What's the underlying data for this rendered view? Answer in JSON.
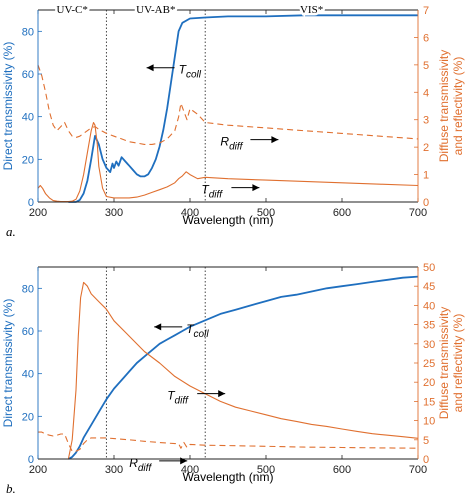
{
  "chart_data": [
    {
      "panel_label": "a.",
      "type": "line",
      "xlabel": "Wavelength (nm)",
      "ylabel_left": "Direct transmissivity (%)",
      "ylabel_right": [
        "Diffuse transmissivity",
        "and reflectivity (%)"
      ],
      "xlim": [
        200,
        700
      ],
      "xticks": [
        200,
        300,
        400,
        500,
        600,
        700
      ],
      "ylim_left": [
        0,
        90
      ],
      "yticks_left": [
        0,
        20,
        40,
        60,
        80
      ],
      "ylim_right": [
        0,
        7
      ],
      "yticks_right": [
        0,
        1,
        2,
        3,
        4,
        5,
        6,
        7
      ],
      "region_lines_x": [
        290,
        420
      ],
      "regions": [
        {
          "label": "UV-C*",
          "x_start": 200,
          "x_end": 290
        },
        {
          "label": "UV-AB*",
          "x_start": 290,
          "x_end": 420
        },
        {
          "label": "VIS*",
          "x_start": 420,
          "x_end": 700
        }
      ],
      "series": [
        {
          "name": "T_coll",
          "axis": "left",
          "color": "#1f6fbf",
          "style": "solid",
          "x": [
            240,
            250,
            255,
            260,
            265,
            270,
            275,
            280,
            285,
            290,
            295,
            298,
            300,
            303,
            306,
            310,
            315,
            320,
            325,
            330,
            335,
            340,
            345,
            350,
            355,
            360,
            365,
            370,
            375,
            380,
            385,
            390,
            400,
            420,
            450,
            500,
            550,
            600,
            650,
            700
          ],
          "y": [
            0,
            0,
            1,
            4,
            10,
            20,
            31,
            27,
            20,
            16,
            14,
            18,
            16,
            19,
            17,
            21,
            19,
            17,
            15,
            13,
            12,
            12,
            13,
            16,
            20,
            26,
            34,
            44,
            56,
            68,
            80,
            84,
            86,
            86.5,
            87,
            87,
            87.5,
            87.5,
            87.5,
            87.5
          ]
        },
        {
          "name": "T_diff",
          "axis": "right",
          "color": "#e07030",
          "style": "solid",
          "x": [
            200,
            203,
            206,
            210,
            215,
            220,
            225,
            230,
            235,
            240,
            245,
            250,
            255,
            260,
            265,
            270,
            273,
            275,
            278,
            280,
            285,
            290,
            300,
            310,
            320,
            330,
            340,
            350,
            360,
            370,
            380,
            385,
            390,
            395,
            400,
            410,
            420,
            450,
            500,
            550,
            600,
            650,
            700
          ],
          "y": [
            0.5,
            0.6,
            0.5,
            0.3,
            0.15,
            0.05,
            0.03,
            0.02,
            0.02,
            0.02,
            0.03,
            0.1,
            0.4,
            1.0,
            1.8,
            2.6,
            2.9,
            2.8,
            2.1,
            1.3,
            0.5,
            0.2,
            0.15,
            0.15,
            0.15,
            0.18,
            0.25,
            0.35,
            0.45,
            0.55,
            0.7,
            0.85,
            0.95,
            1.1,
            1.0,
            0.85,
            0.9,
            0.85,
            0.8,
            0.75,
            0.7,
            0.65,
            0.6
          ]
        },
        {
          "name": "R_diff",
          "axis": "right",
          "color": "#e07030",
          "style": "dashed",
          "x": [
            200,
            205,
            210,
            215,
            220,
            225,
            230,
            235,
            240,
            245,
            250,
            255,
            260,
            265,
            270,
            275,
            280,
            290,
            300,
            310,
            320,
            330,
            340,
            350,
            360,
            370,
            380,
            385,
            388,
            392,
            396,
            400,
            410,
            420,
            450,
            500,
            550,
            600,
            650,
            700
          ],
          "y": [
            5.0,
            4.6,
            4.0,
            3.3,
            2.8,
            2.6,
            2.75,
            2.9,
            2.6,
            2.4,
            2.35,
            2.4,
            2.5,
            2.6,
            2.7,
            2.75,
            2.65,
            2.5,
            2.4,
            2.3,
            2.2,
            2.15,
            2.1,
            2.1,
            2.15,
            2.3,
            2.6,
            3.1,
            3.6,
            3.3,
            3.0,
            3.4,
            3.2,
            2.9,
            2.8,
            2.7,
            2.6,
            2.5,
            2.4,
            2.3
          ]
        }
      ],
      "annotations": [
        {
          "base": "T",
          "sub": "coll",
          "x": 385,
          "y_left": 62
        },
        {
          "base": "R",
          "sub": "diff",
          "x": 440,
          "y_right": 2.2
        },
        {
          "base": "T",
          "sub": "diff",
          "x": 415,
          "y_right": 0.45
        }
      ]
    },
    {
      "panel_label": "b.",
      "type": "line",
      "xlabel": "Wavelength (nm)",
      "ylabel_left": "Direct transmissivity (%)",
      "ylabel_right": [
        "Diffuse transmissivity",
        "and reflectivity (%)"
      ],
      "xlim": [
        200,
        700
      ],
      "xticks": [
        200,
        300,
        400,
        500,
        600,
        700
      ],
      "ylim_left": [
        0,
        90
      ],
      "yticks_left": [
        0,
        20,
        40,
        60,
        80
      ],
      "ylim_right": [
        0,
        50
      ],
      "yticks_right": [
        0,
        5,
        10,
        15,
        20,
        25,
        30,
        35,
        40,
        45,
        50
      ],
      "region_lines_x": [
        290,
        420
      ],
      "series": [
        {
          "name": "T_coll",
          "axis": "left",
          "color": "#1f6fbf",
          "style": "solid",
          "x": [
            240,
            245,
            250,
            255,
            260,
            270,
            280,
            290,
            300,
            310,
            320,
            330,
            340,
            350,
            360,
            370,
            380,
            390,
            400,
            420,
            440,
            460,
            480,
            500,
            520,
            540,
            560,
            580,
            600,
            620,
            640,
            660,
            680,
            700
          ],
          "y": [
            0,
            1,
            3,
            6,
            10,
            16,
            22,
            28,
            33,
            37,
            41,
            45,
            48,
            51,
            54,
            56,
            58,
            60,
            62,
            65,
            68,
            70,
            72,
            74,
            76,
            77,
            78.5,
            80,
            81,
            82,
            83,
            84,
            85,
            85.5
          ]
        },
        {
          "name": "T_diff",
          "axis": "right",
          "color": "#e07030",
          "style": "solid",
          "x": [
            240,
            245,
            250,
            253,
            256,
            260,
            265,
            270,
            280,
            290,
            300,
            320,
            340,
            360,
            380,
            400,
            420,
            440,
            460,
            480,
            500,
            520,
            540,
            560,
            580,
            600,
            620,
            640,
            660,
            680,
            700
          ],
          "y": [
            0,
            5,
            18,
            32,
            42,
            46,
            45,
            43,
            41,
            39,
            36,
            32,
            28,
            25,
            21.5,
            19,
            17,
            15,
            13.5,
            12.5,
            11.5,
            10.5,
            9.8,
            9,
            8.5,
            7.8,
            7.2,
            6.6,
            6.2,
            5.8,
            5.4
          ]
        },
        {
          "name": "R_diff",
          "axis": "right",
          "color": "#e07030",
          "style": "dashed",
          "x": [
            200,
            205,
            210,
            215,
            220,
            225,
            230,
            235,
            240,
            245,
            250,
            255,
            260,
            265,
            270,
            280,
            290,
            300,
            320,
            340,
            360,
            380,
            385,
            388,
            392,
            396,
            400,
            420,
            450,
            500,
            550,
            600,
            650,
            700
          ],
          "y": [
            7,
            7,
            6.5,
            6.2,
            6,
            6.2,
            6.5,
            6.5,
            4,
            2,
            2,
            2.5,
            4,
            5,
            5.5,
            5.5,
            5.5,
            5.3,
            5,
            4.6,
            4.3,
            4,
            4,
            2.8,
            4.3,
            3,
            3.8,
            3.6,
            3.5,
            3.3,
            3.1,
            3,
            2.9,
            2.8
          ]
        }
      ],
      "annotations": [
        {
          "base": "T",
          "sub": "coll",
          "x": 395,
          "y_left": 61
        },
        {
          "base": "T",
          "sub": "diff",
          "x": 370,
          "y_right": 16.5
        },
        {
          "base": "R",
          "sub": "diff",
          "x": 320,
          "y_right": -1
        }
      ]
    }
  ]
}
